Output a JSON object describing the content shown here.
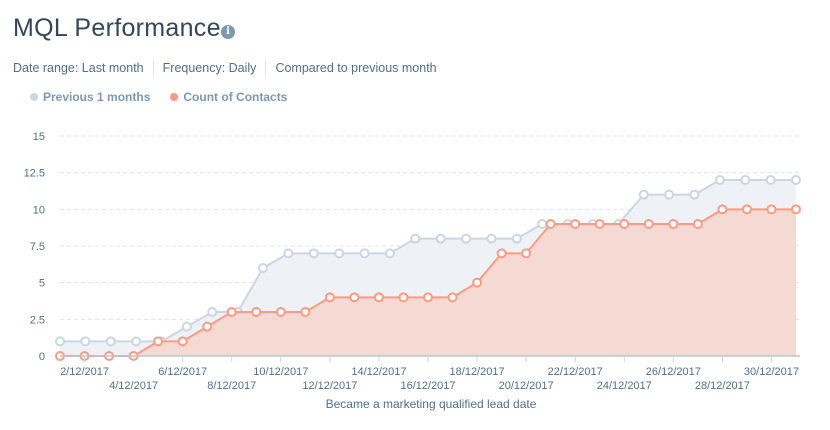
{
  "header": {
    "title": "MQL Performance",
    "info_icon": "info-circle-icon"
  },
  "filters": [
    "Date range: Last month",
    "Frequency: Daily",
    "Compared to previous month"
  ],
  "colors": {
    "previous": "#cbd6e2",
    "previous_fill": "#eef2f6",
    "current": "#ff9a80",
    "current_fill": "#f5dad3",
    "text": "#516f90"
  },
  "chart_data": {
    "type": "area",
    "title": "",
    "xlabel": "Became a marketing qualified lead date",
    "ylabel": "",
    "ylim": [
      0,
      15
    ],
    "yticks": [
      "0",
      "2.5",
      "5",
      "7.5",
      "10",
      "12.5",
      "15"
    ],
    "xtick_labels": [
      "2/12/2017",
      "4/12/2017",
      "6/12/2017",
      "8/12/2017",
      "10/12/2017",
      "12/12/2017",
      "14/12/2017",
      "16/12/2017",
      "18/12/2017",
      "20/12/2017",
      "22/12/2017",
      "24/12/2017",
      "26/12/2017",
      "28/12/2017",
      "30/12/2017"
    ],
    "legend_position": "top-left",
    "grid": true,
    "series": [
      {
        "name": "Previous 1 months",
        "color": "#cbd6e2",
        "values": [
          1,
          1,
          1,
          1,
          1,
          2,
          3,
          3,
          6,
          7,
          7,
          7,
          7,
          7,
          8,
          8,
          8,
          8,
          8,
          9,
          9,
          9,
          9,
          11,
          11,
          11,
          12,
          12,
          12,
          12
        ]
      },
      {
        "name": "Count of Contacts",
        "color": "#ff9a80",
        "x": [
          "1/12/2017",
          "2/12/2017",
          "3/12/2017",
          "4/12/2017",
          "5/12/2017",
          "6/12/2017",
          "7/12/2017",
          "8/12/2017",
          "9/12/2017",
          "10/12/2017",
          "11/12/2017",
          "12/12/2017",
          "13/12/2017",
          "14/12/2017",
          "15/12/2017",
          "16/12/2017",
          "17/12/2017",
          "18/12/2017",
          "19/12/2017",
          "20/12/2017",
          "21/12/2017",
          "22/12/2017",
          "23/12/2017",
          "24/12/2017",
          "25/12/2017",
          "26/12/2017",
          "27/12/2017",
          "28/12/2017",
          "29/12/2017",
          "30/12/2017",
          "31/12/2017"
        ],
        "values": [
          0,
          0,
          0,
          0,
          1,
          1,
          2,
          3,
          3,
          3,
          3,
          4,
          4,
          4,
          4,
          4,
          4,
          5,
          7,
          7,
          9,
          9,
          9,
          9,
          9,
          9,
          9,
          10,
          10,
          10,
          10
        ]
      }
    ]
  }
}
